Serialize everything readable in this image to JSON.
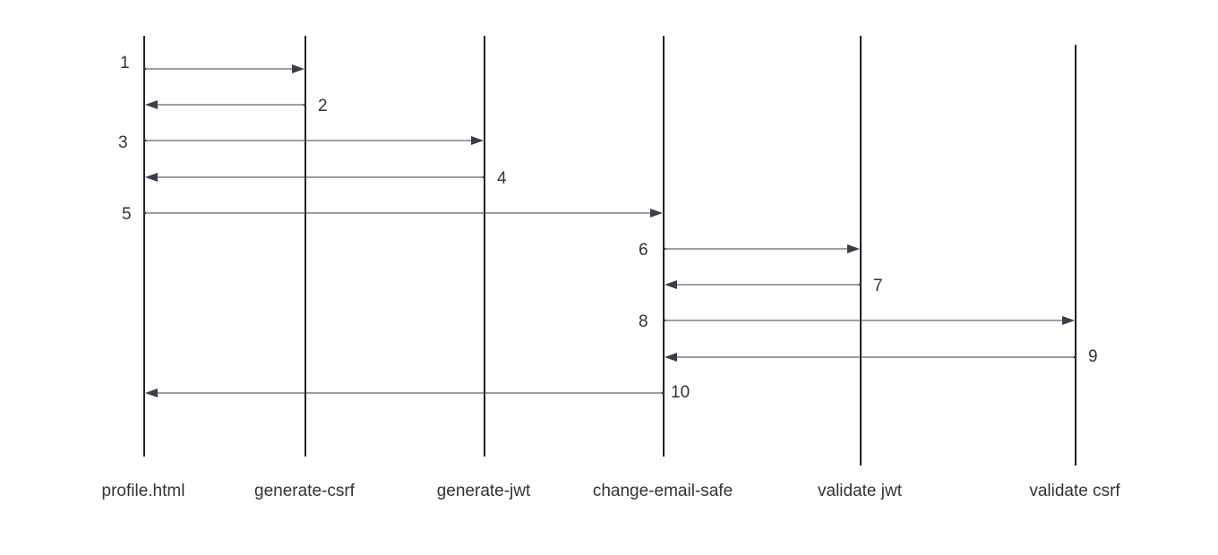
{
  "participants": [
    {
      "id": "profile",
      "label": "profile.html"
    },
    {
      "id": "csrf",
      "label": "generate-csrf"
    },
    {
      "id": "jwt",
      "label": "generate-jwt"
    },
    {
      "id": "email",
      "label": "change-email-safe"
    },
    {
      "id": "vjwt",
      "label": "validate jwt"
    },
    {
      "id": "vcsrf",
      "label": "validate csrf"
    }
  ],
  "messages": [
    {
      "step": "1",
      "from": "profile",
      "to": "csrf"
    },
    {
      "step": "2",
      "from": "csrf",
      "to": "profile"
    },
    {
      "step": "3",
      "from": "profile",
      "to": "jwt"
    },
    {
      "step": "4",
      "from": "jwt",
      "to": "profile"
    },
    {
      "step": "5",
      "from": "profile",
      "to": "email"
    },
    {
      "step": "6",
      "from": "email",
      "to": "vjwt"
    },
    {
      "step": "7",
      "from": "vjwt",
      "to": "email"
    },
    {
      "step": "8",
      "from": "email",
      "to": "vcsrf"
    },
    {
      "step": "9",
      "from": "vcsrf",
      "to": "email"
    },
    {
      "step": "10",
      "from": "email",
      "to": "profile"
    }
  ],
  "colors": {
    "line": "#222222",
    "arrow": "#3a3d4a",
    "text": "#333333"
  }
}
